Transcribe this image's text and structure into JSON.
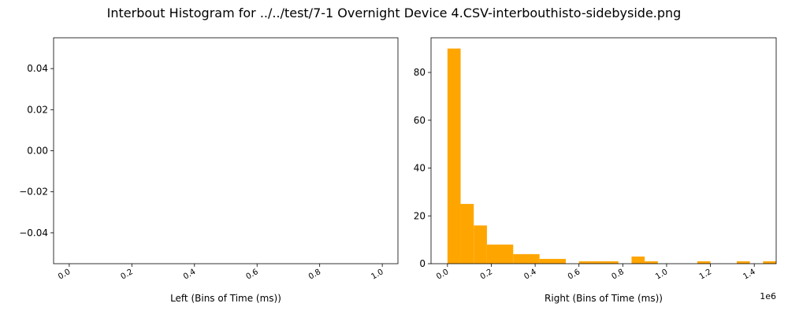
{
  "figure": {
    "title": "Interbout Histogram for ../../test/7-1 Overnight Device 4.CSV-interbouthisto-sidebyside.png"
  },
  "chart_data": [
    {
      "type": "bar",
      "title": "",
      "xlabel": "Left (Bins of Time (ms))",
      "ylabel": "",
      "xlim": [
        -0.05,
        1.05
      ],
      "ylim": [
        -0.055,
        0.055
      ],
      "xticks": [
        "0.0",
        "0.2",
        "0.4",
        "0.6",
        "0.8",
        "1.0"
      ],
      "xtick_values": [
        0.0,
        0.2,
        0.4,
        0.6,
        0.8,
        1.0
      ],
      "yticks": [
        "0.04",
        "0.02",
        "0.00",
        "−0.02",
        "−0.04"
      ],
      "ytick_values": [
        0.04,
        0.02,
        0.0,
        -0.02,
        -0.04
      ],
      "bins": [
        [
          0.0,
          0.04
        ],
        [
          0.04,
          0.08
        ],
        [
          0.08,
          0.12
        ],
        [
          0.12,
          0.16
        ],
        [
          0.16,
          0.2
        ],
        [
          0.2,
          0.24
        ],
        [
          0.24,
          0.28
        ],
        [
          0.28,
          0.32
        ],
        [
          0.32,
          0.36
        ],
        [
          0.36,
          0.4
        ],
        [
          0.4,
          0.44
        ],
        [
          0.44,
          0.48
        ],
        [
          0.48,
          0.52
        ],
        [
          0.52,
          0.56
        ],
        [
          0.56,
          0.6
        ],
        [
          0.6,
          0.64
        ],
        [
          0.64,
          0.68
        ],
        [
          0.68,
          0.72
        ],
        [
          0.72,
          0.76
        ],
        [
          0.76,
          0.8
        ],
        [
          0.8,
          0.84
        ],
        [
          0.84,
          0.88
        ],
        [
          0.88,
          0.92
        ],
        [
          0.92,
          0.96
        ],
        [
          0.96,
          1.0
        ]
      ],
      "values": [
        0,
        0,
        0,
        0,
        0,
        0,
        0,
        0,
        0,
        0,
        0,
        0,
        0,
        0,
        0,
        0,
        0,
        0,
        0,
        0,
        0,
        0,
        0,
        0,
        0
      ],
      "color": "#FFA500",
      "grid": false
    },
    {
      "type": "bar",
      "title": "",
      "xlabel": "Right (Bins of Time (ms))",
      "ylabel": "",
      "offset_label": "1e6",
      "xlim": [
        -0.075,
        1.5
      ],
      "ylim": [
        0,
        94.5
      ],
      "xticks": [
        "0.0",
        "0.2",
        "0.4",
        "0.6",
        "0.8",
        "1.0",
        "1.2",
        "1.4"
      ],
      "xtick_values": [
        0.0,
        0.2,
        0.4,
        0.6,
        0.8,
        1.0,
        1.2,
        1.4
      ],
      "yticks": [
        "0",
        "20",
        "40",
        "60",
        "80"
      ],
      "ytick_values": [
        0,
        20,
        40,
        60,
        80
      ],
      "bins": [
        [
          0.0,
          0.06
        ],
        [
          0.06,
          0.12
        ],
        [
          0.12,
          0.18
        ],
        [
          0.18,
          0.3
        ],
        [
          0.3,
          0.42
        ],
        [
          0.42,
          0.54
        ],
        [
          0.6,
          0.78
        ],
        [
          0.84,
          0.9
        ],
        [
          0.9,
          0.96
        ],
        [
          1.14,
          1.2
        ],
        [
          1.32,
          1.38
        ],
        [
          1.44,
          1.5
        ]
      ],
      "values": [
        90,
        25,
        16,
        8,
        4,
        2,
        1,
        3,
        1,
        1,
        1,
        1
      ],
      "color": "#FFA500",
      "grid": false
    }
  ]
}
